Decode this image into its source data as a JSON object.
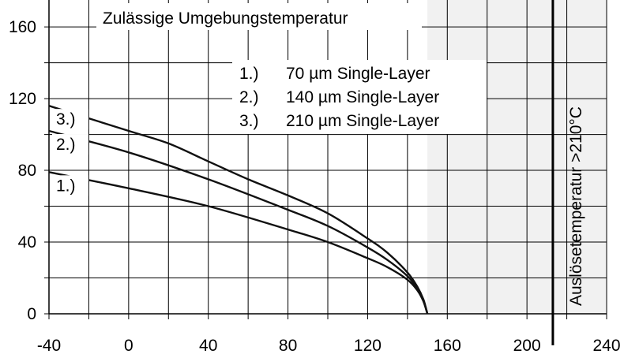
{
  "chart_data": {
    "type": "line",
    "title": "Zulässige Umgebungstemperatur",
    "xlabel": "",
    "ylabel": "",
    "xlim": [
      -40,
      240
    ],
    "ylim": [
      0,
      175
    ],
    "x_ticks": [
      "-40",
      "0",
      "40",
      "80",
      "120",
      "160",
      "200",
      "240"
    ],
    "y_ticks": [
      "0",
      "40",
      "80",
      "120",
      "160"
    ],
    "x_tick_values": [
      -40,
      0,
      40,
      80,
      120,
      160,
      200,
      240
    ],
    "y_tick_values": [
      0,
      40,
      80,
      120,
      160
    ],
    "grid": true,
    "shaded_region": [
      150,
      240
    ],
    "trip_line": {
      "x": 213,
      "label": "Auslösetemperatur >210°C"
    },
    "legend": {
      "placement": "top-center",
      "entries": [
        {
          "num": "1.)",
          "text": "70 µm Single-Layer"
        },
        {
          "num": "2.)",
          "text": "140 µm Single-Layer"
        },
        {
          "num": "3.)",
          "text": "210 µm Single-Layer"
        }
      ]
    },
    "series": [
      {
        "name": "1.)",
        "label": "1.)",
        "x": [
          -40,
          0,
          40,
          80,
          100,
          120,
          130,
          140,
          145,
          148,
          150
        ],
        "y": [
          79,
          70,
          60,
          47,
          40,
          31,
          26,
          19,
          13,
          7,
          0
        ]
      },
      {
        "name": "2.)",
        "label": "2.)",
        "x": [
          -40,
          0,
          40,
          80,
          100,
          120,
          130,
          140,
          145,
          148,
          150
        ],
        "y": [
          102,
          90,
          75,
          58,
          49,
          37,
          30,
          21,
          14,
          8,
          0
        ]
      },
      {
        "name": "3.)",
        "label": "3.)",
        "x": [
          -40,
          0,
          20,
          40,
          60,
          80,
          100,
          120,
          130,
          140,
          145,
          148,
          150
        ],
        "y": [
          116,
          102,
          95,
          85,
          75,
          66,
          56,
          42,
          34,
          23,
          15,
          8,
          0
        ]
      }
    ],
    "colors": {
      "line": "#111111",
      "grid": "#000000",
      "shade": "#f1f1f1"
    }
  }
}
